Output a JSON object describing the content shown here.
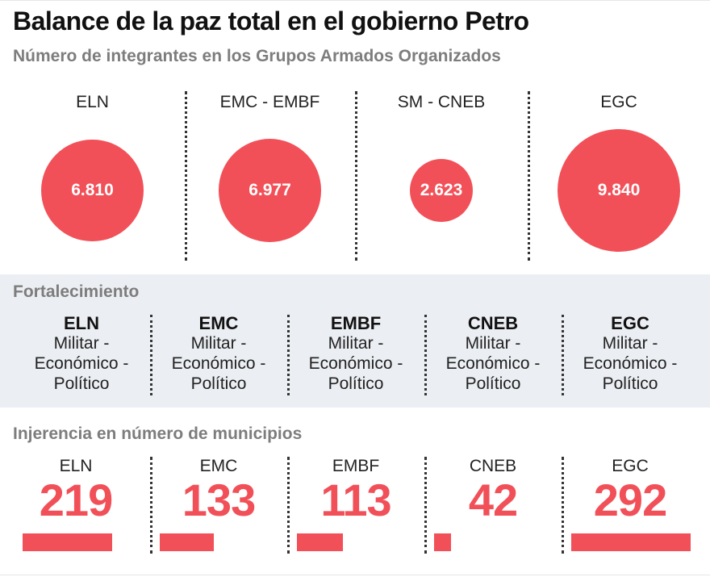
{
  "header": {
    "title": "Balance de la paz total en el gobierno Petro",
    "subtitle": "Número de integrantes en los Grupos Armados Organizados"
  },
  "colors": {
    "accent": "#f25058",
    "band": "#ebeef2",
    "muted": "#7d7d7d"
  },
  "chart_data": [
    {
      "type": "bubble",
      "title": "Número de integrantes en los Grupos Armados Organizados",
      "categories": [
        "ELN",
        "EMC - EMBF",
        "SM - CNEB",
        "EGC"
      ],
      "values": [
        6810,
        6977,
        2623,
        9840
      ],
      "value_labels": [
        "6.810",
        "6.977",
        "2.623",
        "9.840"
      ]
    },
    {
      "type": "table",
      "title": "Fortalecimiento",
      "rows": [
        {
          "group": "ELN",
          "text": "Militar - Económico - Político"
        },
        {
          "group": "EMC",
          "text": "Militar - Económico - Político"
        },
        {
          "group": "EMBF",
          "text": "Militar - Económico - Político"
        },
        {
          "group": "CNEB",
          "text": "Militar - Económico - Político"
        },
        {
          "group": "EGC",
          "text": "Militar - Económico - Político"
        }
      ]
    },
    {
      "type": "bar",
      "title": "Injerencia en número de municipios",
      "categories": [
        "ELN",
        "EMC",
        "EMBF",
        "CNEB",
        "EGC"
      ],
      "values": [
        219,
        133,
        113,
        42,
        292
      ]
    }
  ],
  "fortalecimiento": {
    "title": "Fortalecimiento",
    "items": [
      {
        "name": "ELN",
        "l1": "Militar -",
        "l2": "Económico -",
        "l3": "Político"
      },
      {
        "name": "EMC",
        "l1": "Militar -",
        "l2": "Económico -",
        "l3": "Político"
      },
      {
        "name": "EMBF",
        "l1": "Militar -",
        "l2": "Económico -",
        "l3": "Político"
      },
      {
        "name": "CNEB",
        "l1": "Militar -",
        "l2": "Económico -",
        "l3": "Político"
      },
      {
        "name": "EGC",
        "l1": "Militar -",
        "l2": "Económico -",
        "l3": "Político"
      }
    ]
  },
  "injerencia": {
    "title": "Injerencia en número de municipios"
  }
}
